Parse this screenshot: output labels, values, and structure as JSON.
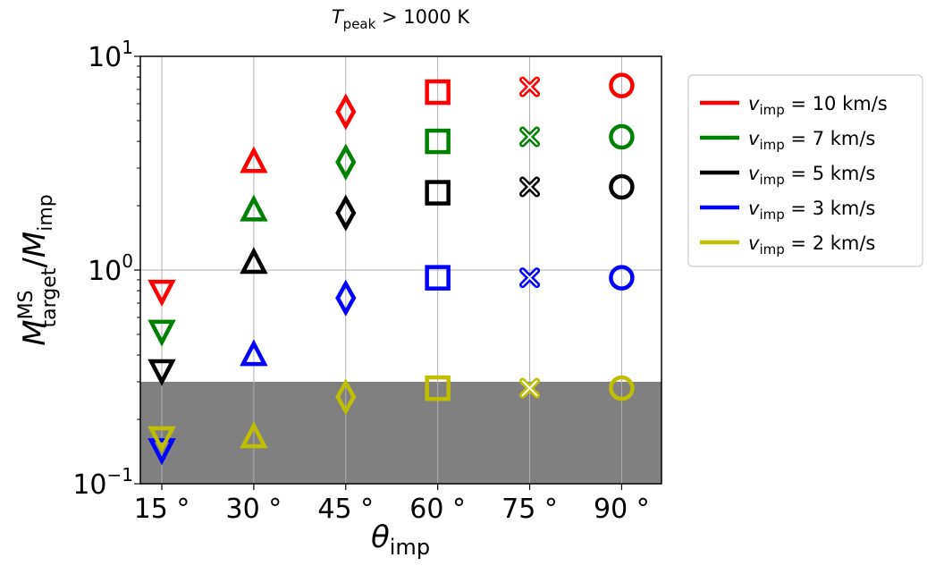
{
  "chart_data": {
    "type": "scatter",
    "title": {
      "symbol": "T",
      "sub": "peak",
      "rest": " >  1000 K"
    },
    "xlabel": {
      "symbol": "θ",
      "sub": "imp"
    },
    "ylabel": {
      "num": "M",
      "num_sup": "MS",
      "num_sub": "target",
      "slash": "/",
      "den": "M",
      "den_sub": "imp"
    },
    "y_scale": "log",
    "ylim": [
      0.1,
      10
    ],
    "y_ticks": [
      {
        "value": 0.1,
        "base": "10",
        "exp": "−1"
      },
      {
        "value": 1,
        "base": "10",
        "exp": "0"
      },
      {
        "value": 10,
        "base": "10",
        "exp": "1"
      }
    ],
    "x": [
      15,
      30,
      45,
      60,
      75,
      90
    ],
    "x_tick_labels": [
      "15 °",
      "30 °",
      "45 °",
      "60 °",
      "75 °",
      "90 °"
    ],
    "markers_by_x": [
      "triangle-down",
      "triangle-up",
      "diamond",
      "square",
      "x",
      "circle"
    ],
    "shaded_region": {
      "y_from": 0.1,
      "y_to": 0.3,
      "color": "#808080"
    },
    "grid": true,
    "legend_position": "outside-right-top",
    "series": [
      {
        "name": {
          "sym": "v",
          "sub": "imp",
          "rest": " = 10 km/s"
        },
        "color": "#ff0000",
        "values": [
          0.8,
          3.2,
          5.5,
          6.8,
          7.2,
          7.3
        ]
      },
      {
        "name": {
          "sym": "v",
          "sub": "imp",
          "rest": " = 7 km/s"
        },
        "color": "#008000",
        "values": [
          0.52,
          1.9,
          3.2,
          4.0,
          4.2,
          4.2
        ]
      },
      {
        "name": {
          "sym": "v",
          "sub": "imp",
          "rest": " = 5 km/s"
        },
        "color": "#000000",
        "values": [
          0.34,
          1.08,
          1.85,
          2.3,
          2.45,
          2.45
        ]
      },
      {
        "name": {
          "sym": "v",
          "sub": "imp",
          "rest": " = 3 km/s"
        },
        "color": "#0000ff",
        "values": [
          0.145,
          0.4,
          0.74,
          0.92,
          0.92,
          0.92
        ]
      },
      {
        "name": {
          "sym": "v",
          "sub": "imp",
          "rest": " = 2 km/s"
        },
        "color": "#bfbf00",
        "values": [
          0.165,
          0.165,
          0.255,
          0.28,
          0.28,
          0.28
        ]
      }
    ]
  }
}
